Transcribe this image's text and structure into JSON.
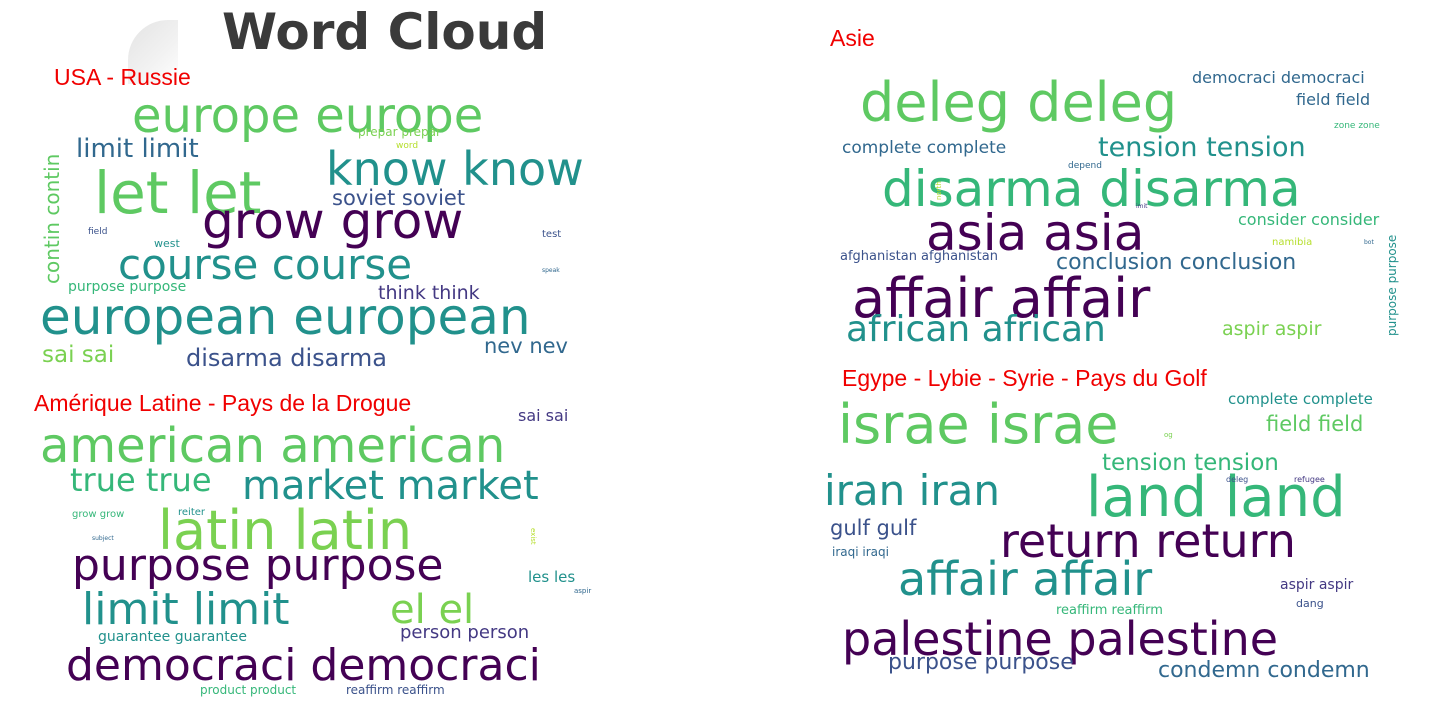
{
  "main_title": "Word Cloud",
  "colors": {
    "panel_title": "#f00000",
    "main_title": "#3a3a3a"
  },
  "panels": [
    {
      "id": "usa-russie",
      "title": "USA - Russie",
      "words": [
        {
          "text": "europe europe",
          "color": "#5ec962"
        },
        {
          "text": "know know",
          "color": "#21918c"
        },
        {
          "text": "let let",
          "color": "#5ec962"
        },
        {
          "text": "limit limit",
          "color": "#31688e"
        },
        {
          "text": "prepar prepar",
          "color": "#7ad151"
        },
        {
          "text": "word",
          "color": "#b5de2b"
        },
        {
          "text": "soviet soviet",
          "color": "#3b528b"
        },
        {
          "text": "grow grow",
          "color": "#440154"
        },
        {
          "text": "contin contin",
          "color": "#5ec962"
        },
        {
          "text": "course course",
          "color": "#21918c"
        },
        {
          "text": "field",
          "color": "#3b528b"
        },
        {
          "text": "west",
          "color": "#21918c"
        },
        {
          "text": "test",
          "color": "#3b528b"
        },
        {
          "text": "speak",
          "color": "#31688e"
        },
        {
          "text": "purpose purpose",
          "color": "#35b779"
        },
        {
          "text": "think think",
          "color": "#443983"
        },
        {
          "text": "european european",
          "color": "#21918c"
        },
        {
          "text": "nev nev",
          "color": "#31688e"
        },
        {
          "text": "sai sai",
          "color": "#7ad151"
        },
        {
          "text": "disarma disarma",
          "color": "#3b528b"
        }
      ]
    },
    {
      "id": "asie",
      "title": "Asie",
      "words": [
        {
          "text": "democraci democraci",
          "color": "#31688e"
        },
        {
          "text": "deleg deleg",
          "color": "#5ec962"
        },
        {
          "text": "field field",
          "color": "#31688e"
        },
        {
          "text": "zone zone",
          "color": "#35b779"
        },
        {
          "text": "complete complete",
          "color": "#31688e"
        },
        {
          "text": "tension tension",
          "color": "#21918c"
        },
        {
          "text": "depend",
          "color": "#31688e"
        },
        {
          "text": "disarma disarma",
          "color": "#35b779"
        },
        {
          "text": "north",
          "color": "#b5de2b"
        },
        {
          "text": "imit",
          "color": "#443983"
        },
        {
          "text": "consider consider",
          "color": "#35b779"
        },
        {
          "text": "asia asia",
          "color": "#440154"
        },
        {
          "text": "namibia",
          "color": "#b5de2b"
        },
        {
          "text": "bot",
          "color": "#31688e"
        },
        {
          "text": "afghanistan afghanistan",
          "color": "#3b528b"
        },
        {
          "text": "conclusion conclusion",
          "color": "#31688e"
        },
        {
          "text": "purpose purpose",
          "color": "#21918c"
        },
        {
          "text": "affair affair",
          "color": "#440154"
        },
        {
          "text": "aspir aspir",
          "color": "#7ad151"
        },
        {
          "text": "african african",
          "color": "#21918c"
        }
      ]
    },
    {
      "id": "amerique-latine",
      "title": "Amérique Latine - Pays de la Drogue",
      "words": [
        {
          "text": "sai sai",
          "color": "#443983"
        },
        {
          "text": "american american",
          "color": "#5ec962"
        },
        {
          "text": "true true",
          "color": "#35b779"
        },
        {
          "text": "market market",
          "color": "#21918c"
        },
        {
          "text": "grow grow",
          "color": "#35b779"
        },
        {
          "text": "reiter",
          "color": "#21918c"
        },
        {
          "text": "latin latin",
          "color": "#7ad151"
        },
        {
          "text": "subject",
          "color": "#31688e"
        },
        {
          "text": "exist",
          "color": "#b5de2b"
        },
        {
          "text": "purpose purpose",
          "color": "#440154"
        },
        {
          "text": "les les",
          "color": "#21918c"
        },
        {
          "text": "aspir",
          "color": "#31688e"
        },
        {
          "text": "limit limit",
          "color": "#21918c"
        },
        {
          "text": "el el",
          "color": "#7ad151"
        },
        {
          "text": "guarantee guarantee",
          "color": "#21918c"
        },
        {
          "text": "person person",
          "color": "#443983"
        },
        {
          "text": "democraci democraci",
          "color": "#440154"
        },
        {
          "text": "product product",
          "color": "#35b779"
        },
        {
          "text": "reaffirm reaffirm",
          "color": "#3b528b"
        }
      ]
    },
    {
      "id": "egypte-lybie",
      "title": "Egype - Lybie - Syrie - Pays du Golf",
      "words": [
        {
          "text": "complete complete",
          "color": "#21918c"
        },
        {
          "text": "israe israe",
          "color": "#5ec962"
        },
        {
          "text": "field field",
          "color": "#5ec962"
        },
        {
          "text": "og",
          "color": "#7ad151"
        },
        {
          "text": "tension tension",
          "color": "#35b779"
        },
        {
          "text": "iran iran",
          "color": "#21918c"
        },
        {
          "text": "land land",
          "color": "#35b779"
        },
        {
          "text": "deleg",
          "color": "#3b528b"
        },
        {
          "text": "refugee",
          "color": "#443983"
        },
        {
          "text": "gulf gulf",
          "color": "#3b528b"
        },
        {
          "text": "return return",
          "color": "#440154"
        },
        {
          "text": "iraqi iraqi",
          "color": "#31688e"
        },
        {
          "text": "affair affair",
          "color": "#21918c"
        },
        {
          "text": "aspir aspir",
          "color": "#443983"
        },
        {
          "text": "dang",
          "color": "#3b528b"
        },
        {
          "text": "reaffirm reaffirm",
          "color": "#35b779"
        },
        {
          "text": "palestine palestine",
          "color": "#440154"
        },
        {
          "text": "purpose purpose",
          "color": "#3b528b"
        },
        {
          "text": "condemn condemn",
          "color": "#31688e"
        }
      ]
    }
  ]
}
